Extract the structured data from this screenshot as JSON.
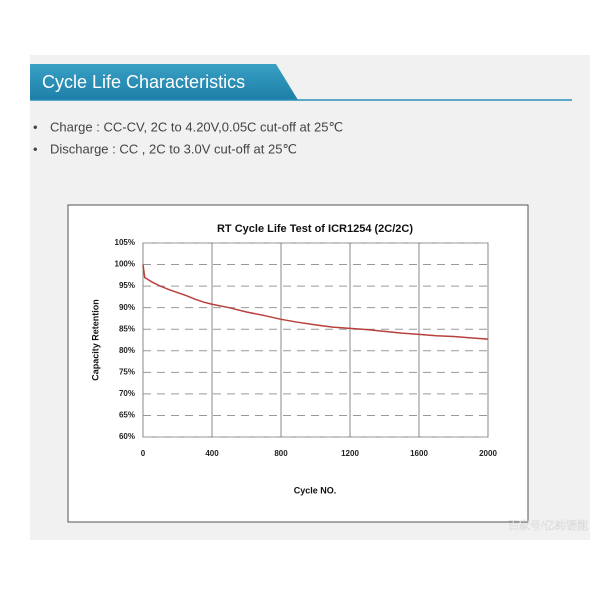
{
  "header": {
    "title": "Cycle Life Characteristics"
  },
  "bullets": [
    "Charge : CC-CV, 2C  to 4.20V,0.05C cut-off at 25℃",
    "Discharge : CC , 2C  to 3.0V cut-off at 25℃"
  ],
  "watermark": "百家号/亿纬锂能",
  "chart_data": {
    "type": "line",
    "title": "RT Cycle Life Test of ICR1254 (2C/2C)",
    "x_label": "Cycle  NO.",
    "y_label": "Capacity Retention",
    "x": [
      0,
      5,
      10,
      30,
      50,
      100,
      150,
      200,
      250,
      300,
      350,
      400,
      500,
      600,
      700,
      800,
      900,
      1000,
      1100,
      1200,
      1300,
      1400,
      1500,
      1600,
      1700,
      1800,
      1900,
      2000
    ],
    "series": [
      {
        "color": "#b8403c",
        "values": [
          100,
          98.5,
          97,
          96.5,
          96,
          95,
          94.2,
          93.5,
          92.8,
          92,
          91.3,
          90.8,
          90,
          89,
          88.2,
          87.3,
          86.6,
          86,
          85.5,
          85.2,
          84.9,
          84.5,
          84.1,
          83.8,
          83.5,
          83.3,
          83,
          82.7
        ]
      }
    ],
    "xlim": [
      0,
      2000
    ],
    "xticks": [
      0,
      400,
      800,
      1200,
      1600,
      2000
    ],
    "ylim": [
      60,
      105
    ],
    "yticks": [
      {
        "value": 60,
        "label": "60%"
      },
      {
        "value": 65,
        "label": "65%"
      },
      {
        "value": 70,
        "label": "70%"
      },
      {
        "value": 75,
        "label": "75%"
      },
      {
        "value": 80,
        "label": "80%"
      },
      {
        "value": 85,
        "label": "85%"
      },
      {
        "value": 90,
        "label": "90%"
      },
      {
        "value": 95,
        "label": "95%"
      },
      {
        "value": 100,
        "label": "100%"
      },
      {
        "value": 105,
        "label": "105%"
      }
    ],
    "grid": true
  }
}
